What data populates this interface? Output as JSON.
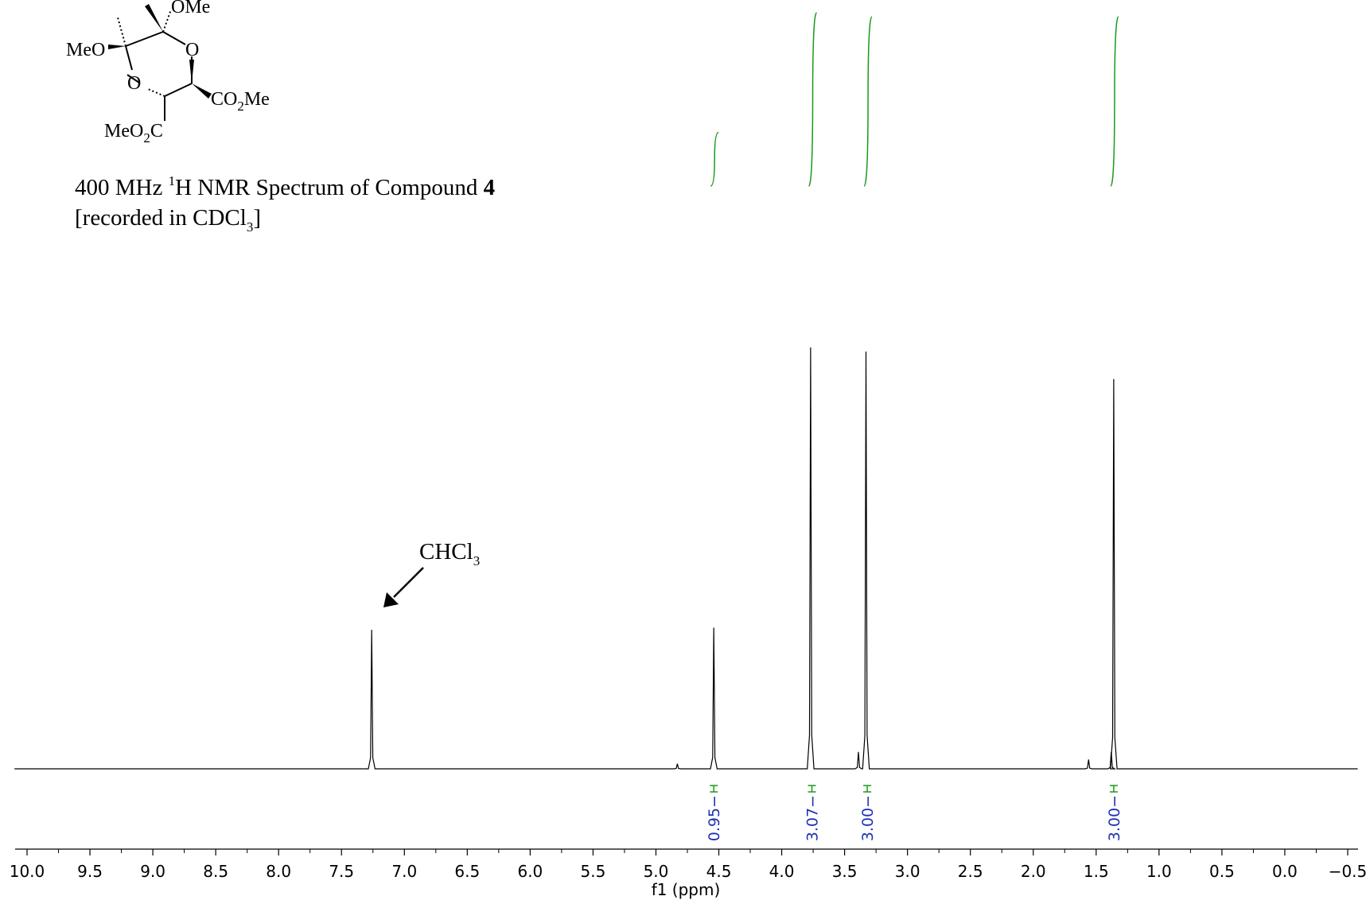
{
  "structure": {
    "labels": {
      "ome_top": "OMe",
      "meo_left": "MeO",
      "o_ring_right": "O",
      "o_ring_left": "O",
      "co2me_right": "CO",
      "co2me_right_sub": "2",
      "co2me_right_tail": "Me",
      "meo2c_left": "MeO",
      "meo2c_left_sub": "2",
      "meo2c_left_tail": "C"
    }
  },
  "caption": {
    "line1_pre": "400 MHz ",
    "line1_sup": "1",
    "line1_mid": "H NMR Spectrum of Compound ",
    "line1_bold": "4",
    "line2_pre": "[recorded in CDCl",
    "line2_sub": "3",
    "line2_post": "]"
  },
  "annotation": {
    "solvent_label": "CHCl",
    "solvent_label_sub": "3"
  },
  "chart_data": {
    "type": "line",
    "xlabel": "f1 (ppm)",
    "xlim": [
      10.0,
      -0.5
    ],
    "xreversed": true,
    "x_ticks": [
      "10.0",
      "9.5",
      "9.0",
      "8.5",
      "8.0",
      "7.5",
      "7.0",
      "6.5",
      "6.0",
      "5.5",
      "5.0",
      "4.5",
      "4.0",
      "3.5",
      "3.0",
      "2.5",
      "2.0",
      "1.5",
      "1.0",
      "0.5",
      "0.0",
      "−0.5"
    ],
    "x_tick_values": [
      10.0,
      9.5,
      9.0,
      8.5,
      8.0,
      7.5,
      7.0,
      6.5,
      6.0,
      5.5,
      5.0,
      4.5,
      4.0,
      3.5,
      3.0,
      2.5,
      2.0,
      1.5,
      1.0,
      0.5,
      0.0,
      -0.5
    ],
    "peaks": [
      {
        "ppm": 7.26,
        "height": 0.33,
        "label": "CHCl3"
      },
      {
        "ppm": 4.83,
        "height": 0.012
      },
      {
        "ppm": 4.54,
        "height": 0.335
      },
      {
        "ppm": 3.77,
        "height": 1.0
      },
      {
        "ppm": 3.39,
        "height": 0.04
      },
      {
        "ppm": 3.33,
        "height": 0.99
      },
      {
        "ppm": 1.56,
        "height": 0.022
      },
      {
        "ppm": 1.38,
        "height": 0.04
      },
      {
        "ppm": 1.36,
        "height": 0.925
      }
    ],
    "integrals": [
      {
        "ppm": 4.54,
        "value": "0.95"
      },
      {
        "ppm": 3.76,
        "value": "3.07"
      },
      {
        "ppm": 3.32,
        "value": "3.00"
      },
      {
        "ppm": 1.36,
        "value": "3.00"
      }
    ],
    "colors": {
      "spectrum": "#000000",
      "integral_curve": "#1a9a1a",
      "integral_value": "#1f2fb5"
    }
  }
}
